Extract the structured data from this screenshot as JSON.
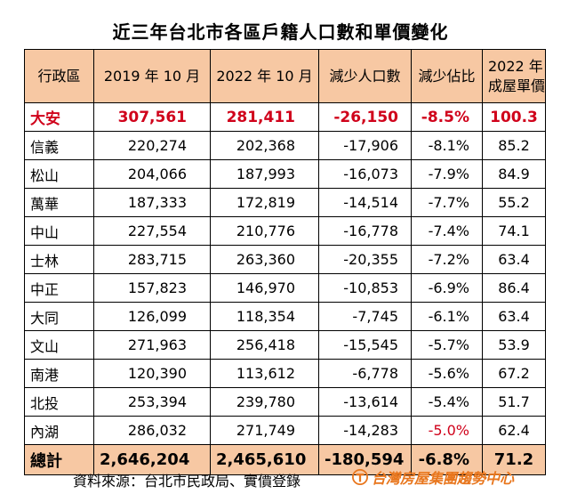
{
  "title": "近三年台北市各區戶籍人口數和單價變化",
  "headers": {
    "district": "行政區",
    "pop2019": "2019 年 10 月",
    "pop2022": "2022 年 10 月",
    "decrease": "減少人口數",
    "ratio": "減少佔比",
    "price_line1": "2022 年",
    "price_line2": "成屋單價"
  },
  "rows": [
    {
      "district": "大安",
      "pop2019": "307,561",
      "pop2022": "281,411",
      "decrease": "-26,150",
      "ratio": "-8.5%",
      "price": "100.3"
    },
    {
      "district": "信義",
      "pop2019": "220,274",
      "pop2022": "202,368",
      "decrease": "-17,906",
      "ratio": "-8.1%",
      "price": "85.2"
    },
    {
      "district": "松山",
      "pop2019": "204,066",
      "pop2022": "187,993",
      "decrease": "-16,073",
      "ratio": "-7.9%",
      "price": "84.9"
    },
    {
      "district": "萬華",
      "pop2019": "187,333",
      "pop2022": "172,819",
      "decrease": "-14,514",
      "ratio": "-7.7%",
      "price": "55.2"
    },
    {
      "district": "中山",
      "pop2019": "227,554",
      "pop2022": "210,776",
      "decrease": "-16,778",
      "ratio": "-7.4%",
      "price": "74.1"
    },
    {
      "district": "士林",
      "pop2019": "283,715",
      "pop2022": "263,360",
      "decrease": "-20,355",
      "ratio": "-7.2%",
      "price": "63.4"
    },
    {
      "district": "中正",
      "pop2019": "157,823",
      "pop2022": "146,970",
      "decrease": "-10,853",
      "ratio": "-6.9%",
      "price": "86.4"
    },
    {
      "district": "大同",
      "pop2019": "126,099",
      "pop2022": "118,354",
      "decrease": "-7,745",
      "ratio": "-6.1%",
      "price": "63.4"
    },
    {
      "district": "文山",
      "pop2019": "271,963",
      "pop2022": "256,418",
      "decrease": "-15,545",
      "ratio": "-5.7%",
      "price": "53.9"
    },
    {
      "district": "南港",
      "pop2019": "120,390",
      "pop2022": "113,612",
      "decrease": "-6,778",
      "ratio": "-5.6%",
      "price": "67.2"
    },
    {
      "district": "北投",
      "pop2019": "253,394",
      "pop2022": "239,780",
      "decrease": "-13,614",
      "ratio": "-5.4%",
      "price": "51.7"
    },
    {
      "district": "內湖",
      "pop2019": "286,032",
      "pop2022": "271,749",
      "decrease": "-14,283",
      "ratio": "-5.0%",
      "price": "62.4"
    }
  ],
  "total": {
    "district": "總計",
    "pop2019": "2,646,204",
    "pop2022": "2,465,610",
    "decrease": "-180,594",
    "ratio": "-6.8%",
    "price": "71.2"
  },
  "source": "資料來源：台北市民政局、實價登錄",
  "brand": "台灣房屋集團趨勢中心",
  "colors": {
    "header_bg": "#f7c8a3",
    "highlight": "#d0021b",
    "brand": "#e8761d"
  }
}
